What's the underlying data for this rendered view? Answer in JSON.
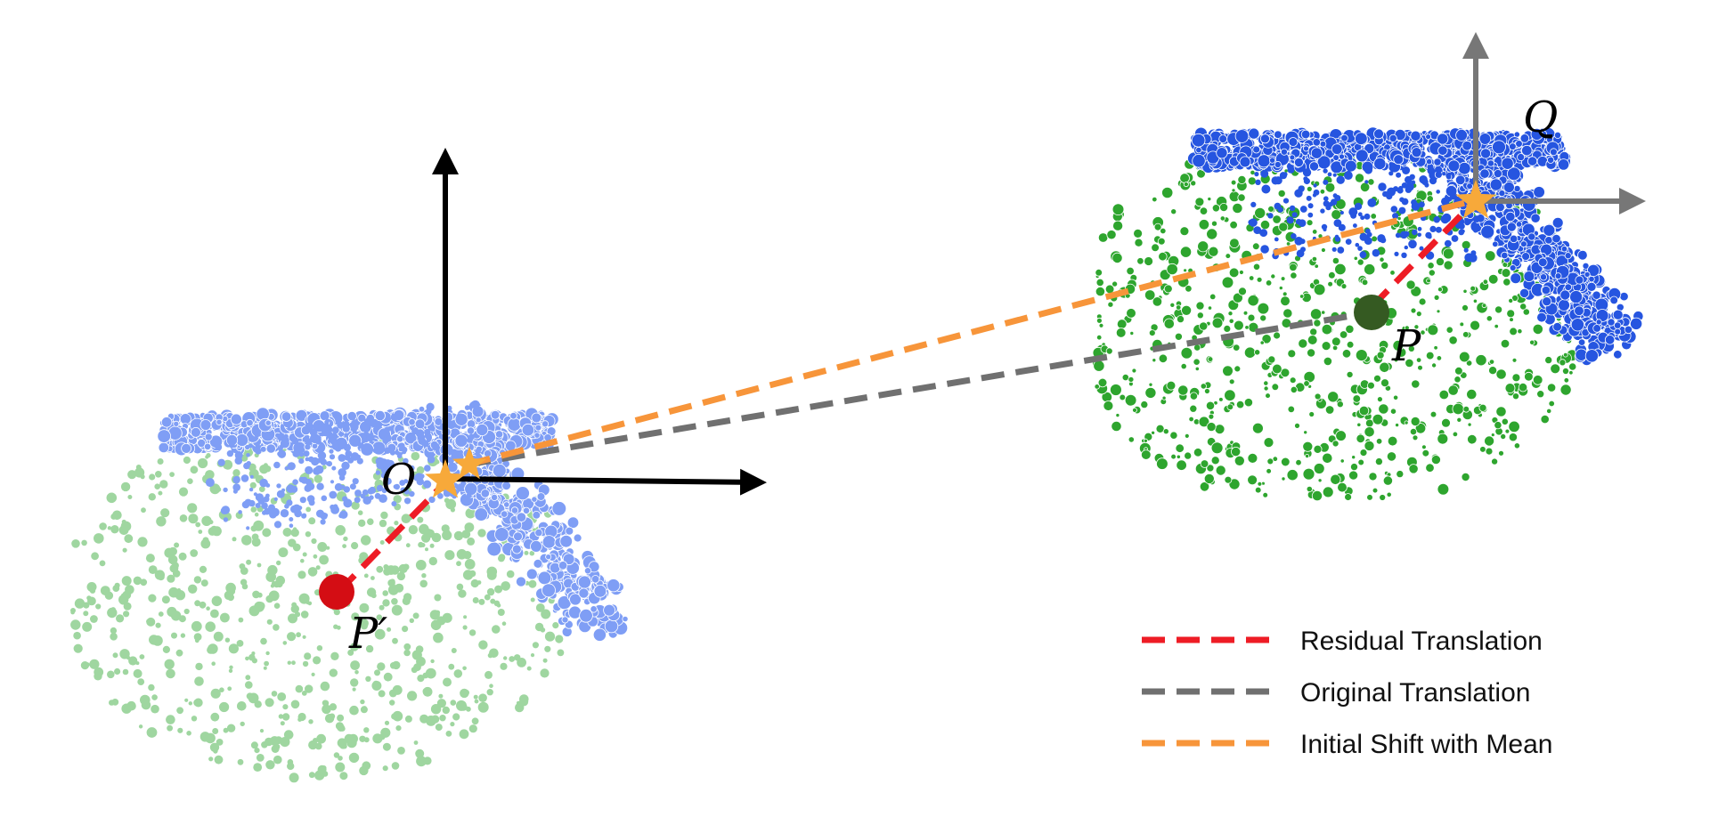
{
  "labels": {
    "origin": "O",
    "p": "P",
    "p_prime": "P′",
    "q": "Q"
  },
  "legend": [
    {
      "text": "Residual Translation",
      "color": "#ee1c25"
    },
    {
      "text": "Original Translation",
      "color": "#707070"
    },
    {
      "text": "Initial Shift with Mean",
      "color": "#f7953a"
    }
  ],
  "colors": {
    "cloud_left_green": "#9fd6a0",
    "cloud_left_blue": "#7f9ef5",
    "cloud_right_green": "#2ea52e",
    "cloud_right_blue": "#2655e0",
    "axis_left": "#000000",
    "axis_right": "#777777",
    "star": "#f7a93a",
    "point_p": "#355a22",
    "point_p_prime": "#d40d14"
  }
}
